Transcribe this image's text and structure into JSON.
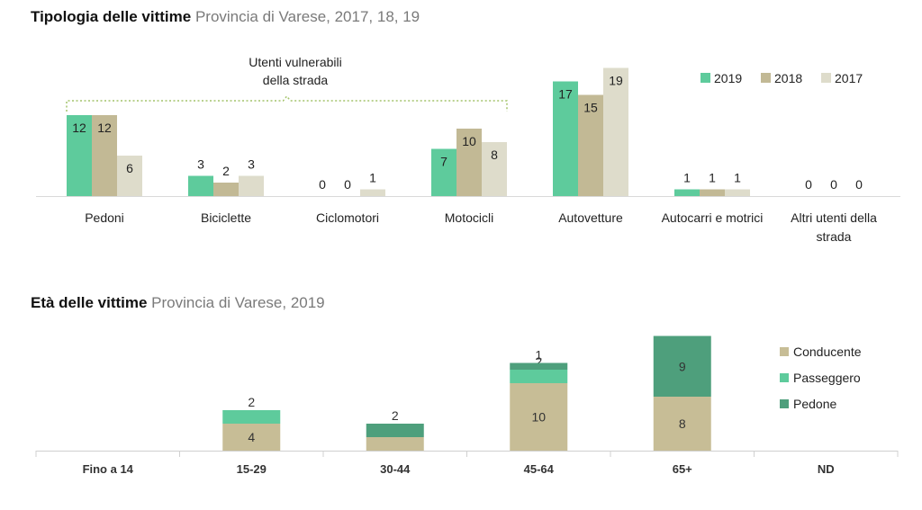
{
  "chart1_heading": {
    "bold": "Tipologia delle vittime",
    "sub": "Provincia di Varese, 2017, 18, 19"
  },
  "chart2_heading": {
    "bold": "Età delle vittime",
    "sub": "Provincia di Varese, 2019"
  },
  "colors": {
    "s2019": "#5ecb9c",
    "s2018": "#c2b995",
    "s2017": "#dedccb",
    "conducente": "#c7bd96",
    "passeggero": "#5ecb9c",
    "pedone": "#4e9f7c",
    "bracket": "#a4c46b"
  },
  "chart_data": [
    {
      "type": "bar",
      "title": "Tipologia delle vittime",
      "subtitle": "Provincia di Varese, 2017, 18, 19",
      "categories": [
        [
          "Pedoni"
        ],
        [
          "Biciclette"
        ],
        [
          "Ciclomotori"
        ],
        [
          "Motocicli"
        ],
        [
          "Autovetture"
        ],
        [
          "Autocarri e motrici"
        ],
        [
          "Altri utenti della",
          "strada"
        ]
      ],
      "series": [
        {
          "name": "2019",
          "values": [
            12,
            3,
            0,
            7,
            17,
            1,
            0
          ]
        },
        {
          "name": "2018",
          "values": [
            12,
            2,
            0,
            10,
            15,
            1,
            0
          ]
        },
        {
          "name": "2017",
          "values": [
            6,
            3,
            1,
            8,
            19,
            1,
            0
          ]
        }
      ],
      "annotation": [
        "Utenti vulnerabili",
        "della strada"
      ],
      "annotation_categories": [
        0,
        3
      ],
      "ylim": [
        0,
        19
      ],
      "legend": "top-right",
      "grid": false
    },
    {
      "type": "bar",
      "stacked": true,
      "title": "Età delle vittime",
      "subtitle": "Provincia di Varese, 2019",
      "categories": [
        "Fino a 14",
        "15-29",
        "30-44",
        "45-64",
        "65+",
        "ND"
      ],
      "series": [
        {
          "name": "Conducente",
          "values": [
            0,
            4,
            2,
            10,
            8,
            0
          ]
        },
        {
          "name": "Passeggero",
          "values": [
            0,
            2,
            0,
            2,
            0,
            0
          ]
        },
        {
          "name": "Pedone",
          "values": [
            0,
            0,
            2,
            1,
            9,
            0
          ]
        }
      ],
      "ylim": [
        0,
        17
      ],
      "legend": "right",
      "grid": false
    }
  ]
}
